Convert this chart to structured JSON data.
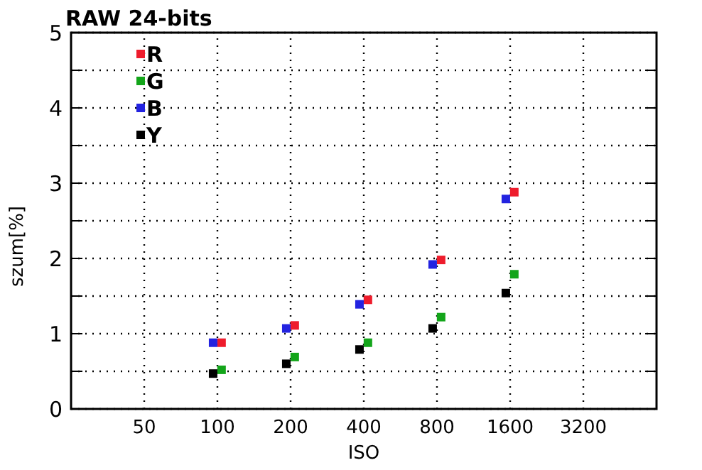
{
  "chart_data": {
    "type": "scatter",
    "title": "RAW 24-bits",
    "xlabel": "ISO",
    "ylabel": "szum[%]",
    "log": "x",
    "xlim": [
      25,
      6400
    ],
    "xticks": [
      50,
      100,
      200,
      400,
      800,
      1600,
      3200
    ],
    "ylim": [
      0,
      5
    ],
    "yticks": [
      0,
      {
        "value": 0.5,
        "label": null
      },
      1,
      {
        "value": 1.5,
        "label": null
      },
      2,
      {
        "value": 2.5,
        "label": null
      },
      3,
      {
        "value": 3.5,
        "label": null
      },
      4,
      {
        "value": 4.5,
        "label": null
      },
      5
    ],
    "grid": true,
    "legend": "top left",
    "marker": "square",
    "series": [
      {
        "name": "R",
        "color": "#ee1c2c",
        "x": [
          104,
          208,
          416,
          832,
          1664
        ],
        "values": [
          0.88,
          1.11,
          1.45,
          1.98,
          2.88
        ]
      },
      {
        "name": "G",
        "color": "#13a51a",
        "x": [
          104,
          208,
          416,
          832,
          1664
        ],
        "values": [
          0.52,
          0.69,
          0.88,
          1.22,
          1.79
        ]
      },
      {
        "name": "B",
        "color": "#2323e0",
        "x": [
          96,
          192,
          384,
          768,
          1536
        ],
        "values": [
          0.88,
          1.07,
          1.39,
          1.92,
          2.79
        ]
      },
      {
        "name": "Y",
        "color": "#000000",
        "x": [
          96,
          192,
          384,
          768,
          1536
        ],
        "values": [
          0.47,
          0.6,
          0.79,
          1.07,
          1.54
        ]
      }
    ]
  }
}
